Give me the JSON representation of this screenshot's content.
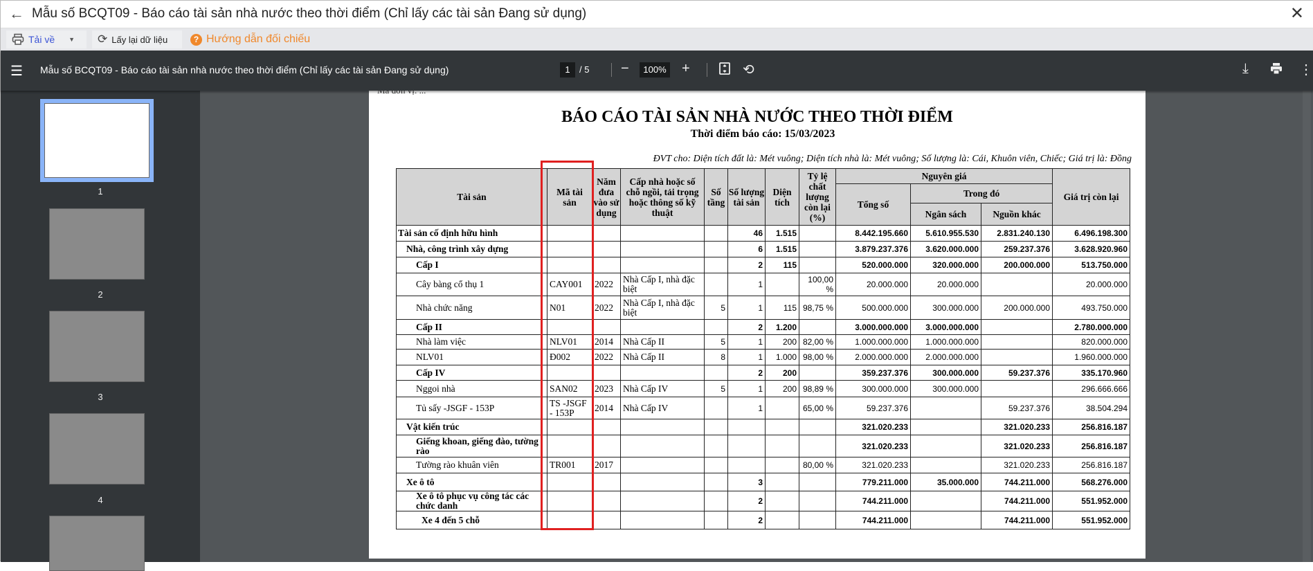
{
  "window": {
    "title": "Mẫu số BCQT09 - Báo cáo tài sản nhà nước theo thời điểm (Chỉ lấy các tài sản Đang sử dụng)"
  },
  "toolbar": {
    "download_label": "Tải về",
    "refresh_label": "Lấy lại dữ liệu",
    "guide_label": "Hướng dẫn đối chiếu",
    "guide_icon_text": "?"
  },
  "viewer": {
    "title": "Mẫu số BCQT09 - Báo cáo tài sản nhà nước theo thời điểm (Chỉ lấy các tài sản Đang sử dụng)",
    "page_current": "1",
    "page_total": "/ 5",
    "zoom": "100%",
    "thumbnails": [
      "1",
      "2",
      "3",
      "4"
    ]
  },
  "report": {
    "cut_text": "Mã đơn vị: ...",
    "title": "BÁO CÁO TÀI SẢN NHÀ NƯỚC THEO THỜI ĐIỂM",
    "subtitle": "Thời điểm báo cáo: 15/03/2023",
    "unit_note": "ĐVT cho: Diện tích đất là: Mét vuông; Diện tích nhà là: Mét vuông; Số lượng là: Cái, Khuôn viên, Chiếc; Giá trị là: Đồng",
    "headers": {
      "tai_san": "Tài sản",
      "ma": "Mã tài sản",
      "nam": "Năm đưa vào sử dụng",
      "cap": "Cấp nhà hoặc số chỗ ngồi, tải trọng hoặc thông số kỹ thuật",
      "tang": "Số tầng",
      "sl": "Số lượng tài sản",
      "dt": "Diện tích",
      "tyle": "Tỷ lệ chất lượng còn lại (%)",
      "nguyen_gia": "Nguyên giá",
      "tong": "Tổng số",
      "trong_do": "Trong đó",
      "ns": "Ngân sách",
      "nk": "Nguồn khác",
      "gtcl": "Giá trị còn lại"
    },
    "rows": [
      {
        "name": "Tài sản cố định hữu hình",
        "lvl": 0,
        "bold": true,
        "ma": "",
        "nam": "",
        "cap": "",
        "tang": "",
        "sl": "46",
        "dt": "1.515",
        "tyle": "",
        "tong": "8.442.195.660",
        "ns": "5.610.955.530",
        "nk": "2.831.240.130",
        "gtcl": "6.496.198.300"
      },
      {
        "name": "Nhà, công trình xây dựng",
        "lvl": 1,
        "bold": true,
        "ma": "",
        "nam": "",
        "cap": "",
        "tang": "",
        "sl": "6",
        "dt": "1.515",
        "tyle": "",
        "tong": "3.879.237.376",
        "ns": "3.620.000.000",
        "nk": "259.237.376",
        "gtcl": "3.628.920.960"
      },
      {
        "name": "Cấp I",
        "lvl": 2,
        "bold": true,
        "ma": "",
        "nam": "",
        "cap": "",
        "tang": "",
        "sl": "2",
        "dt": "115",
        "tyle": "",
        "tong": "520.000.000",
        "ns": "320.000.000",
        "nk": "200.000.000",
        "gtcl": "513.750.000"
      },
      {
        "name": "Cây bàng cổ thụ 1",
        "lvl": 2,
        "bold": false,
        "ma": "CAY001",
        "nam": "2022",
        "cap": "Nhà Cấp I, nhà đặc biệt",
        "tang": "",
        "sl": "1",
        "dt": "",
        "tyle": "100,00 %",
        "tong": "20.000.000",
        "ns": "20.000.000",
        "nk": "",
        "gtcl": "20.000.000"
      },
      {
        "name": "Nhà chức năng",
        "lvl": 2,
        "bold": false,
        "ma": "N01",
        "nam": "2022",
        "cap": "Nhà Cấp I, nhà đặc biệt",
        "tang": "5",
        "sl": "1",
        "dt": "115",
        "tyle": "98,75 %",
        "tong": "500.000.000",
        "ns": "300.000.000",
        "nk": "200.000.000",
        "gtcl": "493.750.000"
      },
      {
        "name": "Cấp II",
        "lvl": 2,
        "bold": true,
        "ma": "",
        "nam": "",
        "cap": "",
        "tang": "",
        "sl": "2",
        "dt": "1.200",
        "tyle": "",
        "tong": "3.000.000.000",
        "ns": "3.000.000.000",
        "nk": "",
        "gtcl": "2.780.000.000"
      },
      {
        "name": "Nhà làm việc",
        "lvl": 2,
        "bold": false,
        "ma": "NLV01",
        "nam": "2014",
        "cap": "Nhà Cấp II",
        "tang": "5",
        "sl": "1",
        "dt": "200",
        "tyle": "82,00 %",
        "tong": "1.000.000.000",
        "ns": "1.000.000.000",
        "nk": "",
        "gtcl": "820.000.000"
      },
      {
        "name": "NLV01",
        "lvl": 2,
        "bold": false,
        "ma": "Đ002",
        "nam": "2022",
        "cap": "Nhà Cấp II",
        "tang": "8",
        "sl": "1",
        "dt": "1.000",
        "tyle": "98,00 %",
        "tong": "2.000.000.000",
        "ns": "2.000.000.000",
        "nk": "",
        "gtcl": "1.960.000.000"
      },
      {
        "name": "Cấp IV",
        "lvl": 2,
        "bold": true,
        "ma": "",
        "nam": "",
        "cap": "",
        "tang": "",
        "sl": "2",
        "dt": "200",
        "tyle": "",
        "tong": "359.237.376",
        "ns": "300.000.000",
        "nk": "59.237.376",
        "gtcl": "335.170.960"
      },
      {
        "name": "Nggoi nhà",
        "lvl": 2,
        "bold": false,
        "ma": "SAN02",
        "nam": "2023",
        "cap": "Nhà Cấp IV",
        "tang": "5",
        "sl": "1",
        "dt": "200",
        "tyle": "98,89 %",
        "tong": "300.000.000",
        "ns": "300.000.000",
        "nk": "",
        "gtcl": "296.666.666"
      },
      {
        "name": "Tủ sấy -JSGF - 153P",
        "lvl": 2,
        "bold": false,
        "ma": "TS -JSGF - 153P",
        "nam": "2014",
        "cap": "Nhà Cấp IV",
        "tang": "",
        "sl": "1",
        "dt": "",
        "tyle": "65,00 %",
        "tong": "59.237.376",
        "ns": "",
        "nk": "59.237.376",
        "gtcl": "38.504.294"
      },
      {
        "name": "Vật kiến trúc",
        "lvl": 1,
        "bold": true,
        "ma": "",
        "nam": "",
        "cap": "",
        "tang": "",
        "sl": "",
        "dt": "",
        "tyle": "",
        "tong": "321.020.233",
        "ns": "",
        "nk": "321.020.233",
        "gtcl": "256.816.187"
      },
      {
        "name": "Giếng khoan, giếng đào, tường rào",
        "lvl": 2,
        "bold": true,
        "ma": "",
        "nam": "",
        "cap": "",
        "tang": "",
        "sl": "",
        "dt": "",
        "tyle": "",
        "tong": "321.020.233",
        "ns": "",
        "nk": "321.020.233",
        "gtcl": "256.816.187"
      },
      {
        "name": "Tường rào khuân viên",
        "lvl": 2,
        "bold": false,
        "ma": "TR001",
        "nam": "2017",
        "cap": "",
        "tang": "",
        "sl": "",
        "dt": "",
        "tyle": "80,00 %",
        "tong": "321.020.233",
        "ns": "",
        "nk": "321.020.233",
        "gtcl": "256.816.187"
      },
      {
        "name": "Xe ô tô",
        "lvl": 1,
        "bold": true,
        "ma": "",
        "nam": "",
        "cap": "",
        "tang": "",
        "sl": "3",
        "dt": "",
        "tyle": "",
        "tong": "779.211.000",
        "ns": "35.000.000",
        "nk": "744.211.000",
        "gtcl": "568.276.000"
      },
      {
        "name": "Xe ô tô phục vụ công tác các chức danh",
        "lvl": 2,
        "bold": true,
        "ma": "",
        "nam": "",
        "cap": "",
        "tang": "",
        "sl": "2",
        "dt": "",
        "tyle": "",
        "tong": "744.211.000",
        "ns": "",
        "nk": "744.211.000",
        "gtcl": "551.952.000"
      },
      {
        "name": "Xe 4 đến 5 chỗ",
        "lvl": 3,
        "bold": true,
        "ma": "",
        "nam": "",
        "cap": "",
        "tang": "",
        "sl": "2",
        "dt": "",
        "tyle": "",
        "tong": "744.211.000",
        "ns": "",
        "nk": "744.211.000",
        "gtcl": "551.952.000"
      }
    ]
  },
  "colors": {
    "highlight_box": "#e02020",
    "accent_blue": "#3d55d6",
    "guide_orange": "#f0882b",
    "viewer_toolbar": "#323639",
    "thumb_active": "#8ab4f8"
  }
}
